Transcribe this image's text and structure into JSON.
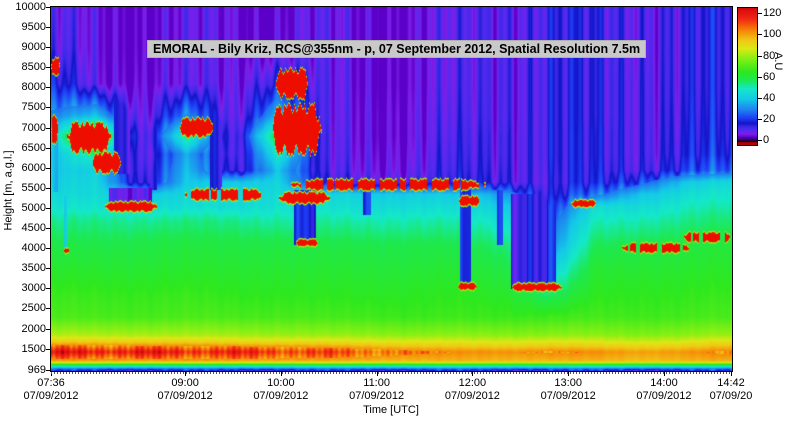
{
  "figure": {
    "title": "EMORAL - Bily Kriz, RCS@355nm - p, 07 September 2012, Spatial Resolution 7.5m"
  },
  "axes": {
    "y_label": "Height [m, a.g.l.]",
    "x_label": "Time [UTC]",
    "y_ticks": [
      10000,
      9500,
      9000,
      8500,
      8000,
      7500,
      7000,
      6500,
      6000,
      5500,
      5000,
      4500,
      4000,
      3500,
      3000,
      2500,
      2000,
      1500,
      969
    ],
    "x_ticks": [
      {
        "time": "07:36",
        "date": "07/09/2012",
        "min": 0
      },
      {
        "time": "09:00",
        "date": "07/09/2012",
        "min": 84
      },
      {
        "time": "10:00",
        "date": "07/09/2012",
        "min": 144
      },
      {
        "time": "11:00",
        "date": "07/09/2012",
        "min": 204
      },
      {
        "time": "12:00",
        "date": "07/09/2012",
        "min": 264
      },
      {
        "time": "13:00",
        "date": "07/09/2012",
        "min": 324
      },
      {
        "time": "14:00",
        "date": "07/09/2012",
        "min": 384
      },
      {
        "time": "14:42",
        "date": "07/09/20",
        "min": 426
      }
    ]
  },
  "colorbar": {
    "label": "A.U",
    "ticks": [
      120,
      100,
      80,
      60,
      40,
      20,
      0
    ],
    "value_max_shown": 126,
    "value_min_shown": 0
  },
  "chart_data": {
    "type": "heatmap",
    "title": "EMORAL - Bily Kriz, RCS@355nm - p, 07 September 2012, Spatial Resolution 7.5m",
    "x_label": "Time [UTC]",
    "y_label": "Height [m, a.g.l.]",
    "value_label": "A.U",
    "x_unit": "minutes since 07:36 UTC on 07/09/2012",
    "x_range": [
      0,
      426
    ],
    "y_range_m": [
      969,
      10000
    ],
    "value_range": [
      0,
      130
    ],
    "grid": {
      "times_min": [
        0,
        28,
        57,
        85,
        114,
        142,
        170,
        198,
        227,
        255,
        284,
        312,
        340,
        368,
        397,
        426
      ],
      "heights_m": [
        969,
        1000,
        1060,
        1120,
        1200,
        1430,
        1680,
        1850,
        2300,
        2900,
        3500,
        4100,
        4700,
        5050,
        5350,
        5650,
        5950,
        6350,
        6800,
        7300,
        8100,
        9000,
        10000
      ],
      "values": [
        [
          17,
          17,
          17,
          17,
          17,
          17,
          17,
          17,
          17,
          17,
          17,
          17,
          17,
          17,
          17,
          17
        ],
        [
          24,
          24,
          24,
          24,
          24,
          24,
          24,
          24,
          24,
          24,
          24,
          24,
          24,
          24,
          24,
          24
        ],
        [
          45,
          45,
          45,
          45,
          45,
          45,
          45,
          45,
          45,
          45,
          45,
          45,
          45,
          45,
          45,
          45
        ],
        [
          66,
          66,
          66,
          66,
          66,
          66,
          66,
          66,
          66,
          66,
          66,
          66,
          66,
          66,
          66,
          66
        ],
        [
          100,
          100,
          100,
          100,
          100,
          99,
          99,
          98,
          98,
          98,
          98,
          98,
          98,
          97,
          98,
          99
        ],
        [
          121,
          121,
          120,
          119,
          118,
          116,
          113,
          110,
          106,
          104,
          104,
          105,
          104,
          102,
          103,
          106
        ],
        [
          95,
          95,
          95,
          94,
          93,
          92,
          91,
          90,
          89,
          88,
          88,
          89,
          88,
          87,
          88,
          91
        ],
        [
          83,
          83,
          83,
          82,
          82,
          81,
          80,
          80,
          79,
          79,
          79,
          79,
          79,
          78,
          79,
          81
        ],
        [
          70,
          70,
          70,
          70,
          70,
          70,
          69,
          69,
          68,
          68,
          68,
          68,
          69,
          69,
          69,
          70
        ],
        [
          67,
          67,
          67,
          67,
          66,
          66,
          65,
          65,
          65,
          65,
          64,
          55,
          65,
          66,
          66,
          67
        ],
        [
          63,
          63,
          63,
          63,
          63,
          63,
          62,
          62,
          62,
          62,
          60,
          42,
          62,
          63,
          63,
          64
        ],
        [
          59,
          59,
          60,
          60,
          60,
          60,
          59,
          59,
          59,
          58,
          56,
          30,
          57,
          59,
          60,
          61
        ],
        [
          53,
          54,
          54,
          54,
          54,
          53,
          52,
          52,
          52,
          51,
          48,
          24,
          50,
          52,
          54,
          56
        ],
        [
          47,
          48,
          46,
          46,
          46,
          48,
          47,
          46,
          46,
          45,
          42,
          18,
          45,
          46,
          50,
          52
        ],
        [
          44,
          45,
          40,
          44,
          46,
          46,
          44,
          42,
          42,
          40,
          35,
          14,
          25,
          40,
          46,
          49
        ],
        [
          42,
          44,
          14,
          40,
          40,
          44,
          12,
          12,
          12,
          14,
          16,
          13,
          15,
          25,
          40,
          45
        ],
        [
          40,
          42,
          12,
          38,
          12,
          40,
          9,
          9,
          9,
          12,
          15,
          14,
          14,
          16,
          20,
          24
        ],
        [
          38,
          55,
          10,
          35,
          9,
          50,
          8,
          8,
          8,
          11,
          14,
          15,
          13,
          15,
          16,
          18
        ],
        [
          45,
          80,
          9,
          55,
          8,
          65,
          8,
          7,
          7,
          10,
          14,
          15,
          13,
          15,
          15,
          16
        ],
        [
          30,
          40,
          8,
          30,
          7,
          40,
          7,
          7,
          7,
          9,
          13,
          15,
          12,
          15,
          14,
          15
        ],
        [
          18,
          7,
          7,
          7,
          7,
          20,
          7,
          6,
          6,
          8,
          13,
          15,
          12,
          15,
          13,
          14
        ],
        [
          10,
          6,
          6,
          6,
          6,
          7,
          6,
          6,
          6,
          8,
          13,
          15,
          12,
          14,
          13,
          14
        ],
        [
          8,
          6,
          6,
          6,
          6,
          6,
          6,
          6,
          6,
          8,
          13,
          15,
          12,
          14,
          13,
          14
        ]
      ]
    },
    "cloud_layers": [
      {
        "t0": 0,
        "t1": 5,
        "h0": 8300,
        "h1": 8750
      },
      {
        "t0": 0,
        "t1": 4,
        "h0": 6600,
        "h1": 7300
      },
      {
        "t0": 10,
        "t1": 37,
        "h0": 6350,
        "h1": 7150
      },
      {
        "t0": 26,
        "t1": 43,
        "h0": 5850,
        "h1": 6400
      },
      {
        "t0": 34,
        "t1": 66,
        "h0": 4900,
        "h1": 5160
      },
      {
        "t0": 80,
        "t1": 101,
        "h0": 6750,
        "h1": 7250
      },
      {
        "t0": 84,
        "t1": 133,
        "h0": 5180,
        "h1": 5480,
        "patchy": true
      },
      {
        "t0": 138,
        "t1": 169,
        "h0": 6300,
        "h1": 7600
      },
      {
        "t0": 141,
        "t1": 161,
        "h0": 7700,
        "h1": 8480
      },
      {
        "t0": 143,
        "t1": 174,
        "h0": 5100,
        "h1": 5400
      },
      {
        "t0": 150,
        "t1": 272,
        "h0": 5430,
        "h1": 5720,
        "patchy": true
      },
      {
        "t0": 153,
        "t1": 167,
        "h0": 4050,
        "h1": 4220
      },
      {
        "t0": 255,
        "t1": 268,
        "h0": 5050,
        "h1": 5300
      },
      {
        "t0": 255,
        "t1": 266,
        "h0": 2960,
        "h1": 3140
      },
      {
        "t0": 288,
        "t1": 320,
        "h0": 2930,
        "h1": 3130
      },
      {
        "t0": 326,
        "t1": 341,
        "h0": 5020,
        "h1": 5200
      },
      {
        "t0": 8,
        "t1": 11,
        "h0": 3880,
        "h1": 3990
      },
      {
        "t0": 358,
        "t1": 400,
        "h0": 3880,
        "h1": 4130,
        "patchy": true
      },
      {
        "t0": 396,
        "t1": 426,
        "h0": 4140,
        "h1": 4400,
        "patchy": true
      }
    ],
    "attenuation_shadows": [
      {
        "t0": 36,
        "t1": 63,
        "h0": 5160,
        "h1": 5520,
        "v": 9
      }
    ],
    "precip_streaks": [
      {
        "t0": 1,
        "t1": 4,
        "h0": 5400,
        "h1": 9200,
        "v": 35
      },
      {
        "t0": 8,
        "t1": 10,
        "h0": 3900,
        "h1": 5300,
        "v": 40
      },
      {
        "t0": 39,
        "t1": 49,
        "h0": 5850,
        "h1": 10000,
        "v": 15
      },
      {
        "t0": 62,
        "t1": 66,
        "h0": 5450,
        "h1": 8200,
        "v": 18
      },
      {
        "t0": 99,
        "t1": 107,
        "h0": 5450,
        "h1": 10000,
        "v": 14
      },
      {
        "t0": 152,
        "t1": 166,
        "h0": 4080,
        "h1": 5450,
        "v": 17
      },
      {
        "t0": 195,
        "t1": 200,
        "h0": 4850,
        "h1": 5450,
        "v": 20
      },
      {
        "t0": 216,
        "t1": 220,
        "h0": 5700,
        "h1": 10000,
        "v": 12
      },
      {
        "t0": 238,
        "t1": 242,
        "h0": 5700,
        "h1": 10000,
        "v": 12
      },
      {
        "t0": 256,
        "t1": 263,
        "h0": 3050,
        "h1": 5450,
        "v": 16
      },
      {
        "t0": 279,
        "t1": 283,
        "h0": 4100,
        "h1": 5450,
        "v": 22
      },
      {
        "t0": 288,
        "t1": 316,
        "h0": 3000,
        "h1": 5350,
        "v": 17
      }
    ],
    "colormap_anchors": [
      [
        0,
        "#140022"
      ],
      [
        4,
        "#5a00c8"
      ],
      [
        7,
        "#7d1ee8"
      ],
      [
        10,
        "#5a28f0"
      ],
      [
        14,
        "#3c28e8"
      ],
      [
        17,
        "#1414c8"
      ],
      [
        22,
        "#1e3cf5"
      ],
      [
        30,
        "#1e82f0"
      ],
      [
        40,
        "#14c8e8"
      ],
      [
        50,
        "#14e8c8"
      ],
      [
        58,
        "#1ee850"
      ],
      [
        66,
        "#2ee81e"
      ],
      [
        78,
        "#82f014"
      ],
      [
        88,
        "#dce814"
      ],
      [
        96,
        "#f0c814"
      ],
      [
        103,
        "#f5960a"
      ],
      [
        110,
        "#f55a0a"
      ],
      [
        116,
        "#f02814"
      ],
      [
        124,
        "#e00e0e"
      ],
      [
        130,
        "#960000"
      ]
    ]
  }
}
